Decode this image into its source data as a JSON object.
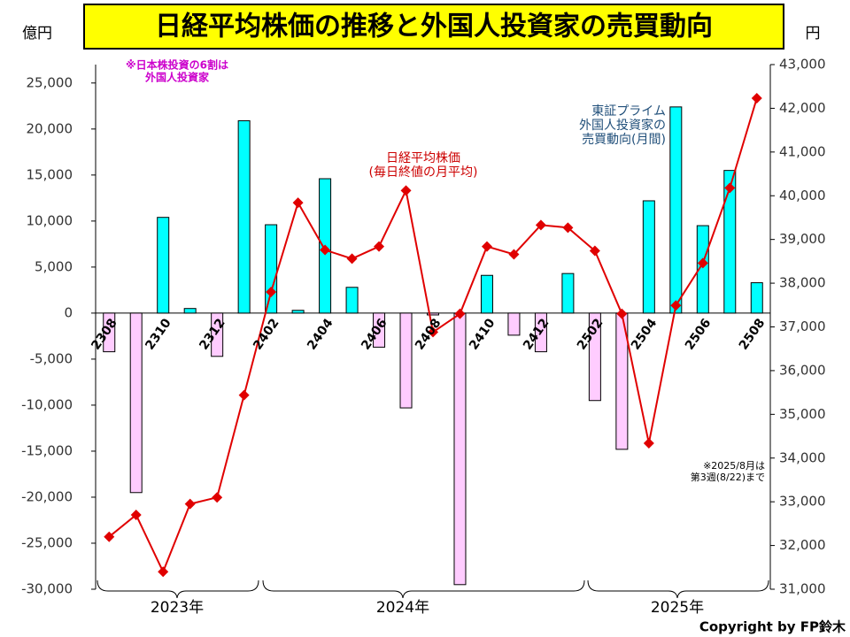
{
  "chart_data": {
    "type": "bar_line",
    "title": "日経平均株価の推移と外国人投資家の売買動向",
    "y_unit": "億円",
    "y2_unit": "円",
    "categories": [
      "2308",
      null,
      "2310",
      null,
      "2312",
      null,
      "2402",
      null,
      "2404",
      null,
      "2406",
      null,
      "2408",
      null,
      "2410",
      null,
      "2412",
      null,
      "2502",
      null,
      "2504",
      null,
      "2506",
      null,
      "2508"
    ],
    "series": [
      {
        "name": "東証プライム外国人投資家の売買動向(月間)",
        "type": "bar",
        "color": "#00ffff",
        "negative_color": "#ffccff",
        "values": [
          -4200,
          -19500,
          10400,
          500,
          -4700,
          20900,
          9600,
          300,
          14600,
          2800,
          -3700,
          -10300,
          -200,
          -29500,
          4100,
          -2400,
          -4200,
          4300,
          -9500,
          -14800,
          12200,
          22400,
          9500,
          15500,
          3300
        ]
      },
      {
        "name": "日経平均株価(毎日終値の月平均)",
        "type": "line",
        "axis": "y2",
        "color": "#e00000",
        "values": [
          32200,
          32700,
          31400,
          32950,
          33100,
          35440,
          37800,
          39840,
          38760,
          38560,
          38840,
          40120,
          36880,
          37300,
          38840,
          38660,
          39330,
          39270,
          38740,
          37300,
          34340,
          37490,
          38460,
          40180,
          42230
        ]
      }
    ],
    "ylim": [
      -30000,
      27000
    ],
    "yticks": [
      {
        "value": -30000,
        "label": "-30,000"
      },
      {
        "value": -25000,
        "label": "-25,000"
      },
      {
        "value": -20000,
        "label": "-20,000"
      },
      {
        "value": -15000,
        "label": "-15,000"
      },
      {
        "value": -10000,
        "label": "-10,000"
      },
      {
        "value": -5000,
        "label": "-5,000"
      },
      0,
      {
        "value": 5000,
        "label": "5,000"
      },
      {
        "value": 10000,
        "label": "10,000"
      },
      {
        "value": 15000,
        "label": "15,000"
      },
      {
        "value": 20000,
        "label": "20,000"
      },
      {
        "value": 25000,
        "label": "25,000"
      }
    ],
    "y2lim": [
      31000,
      43000
    ],
    "y2ticks": [
      {
        "value": 31000,
        "label": "31,000"
      },
      {
        "value": 32000,
        "label": "32,000"
      },
      {
        "value": 33000,
        "label": "33,000"
      },
      {
        "value": 34000,
        "label": "34,000"
      },
      {
        "value": 35000,
        "label": "35,000"
      },
      {
        "value": 36000,
        "label": "36,000"
      },
      {
        "value": 37000,
        "label": "37,000"
      },
      {
        "value": 38000,
        "label": "38,000"
      },
      {
        "value": 39000,
        "label": "39,000"
      },
      {
        "value": 40000,
        "label": "40,000"
      },
      {
        "value": 41000,
        "label": "41,000"
      },
      {
        "value": 42000,
        "label": "42,000"
      },
      {
        "value": 43000,
        "label": "43,000"
      }
    ],
    "annotations": {
      "share": [
        "※日本株投資の6割は",
        "外国人投資家"
      ],
      "nikkei": [
        "日経平均株価",
        "(毎日終値の月平均)"
      ],
      "foreign": [
        "東証プライム",
        "外国人投資家の",
        "売買動向(月間)"
      ],
      "note": [
        "※2025/8月は",
        "第3週(8/22)まで"
      ]
    },
    "years": [
      "2023年",
      "2024年",
      "2025年"
    ],
    "copyright": "Copyright by FP鈴木"
  }
}
